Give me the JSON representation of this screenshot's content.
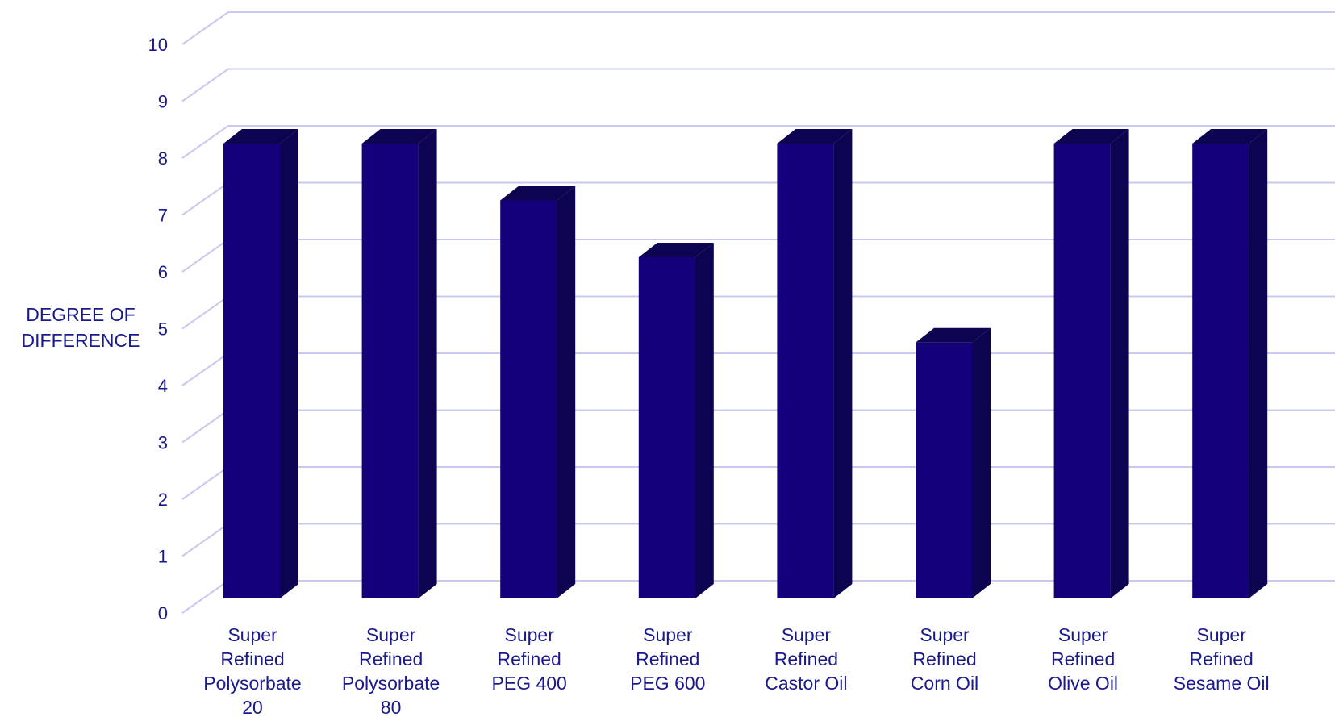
{
  "chart_data": {
    "type": "bar",
    "title": "",
    "ylabel": [
      "DEGREE OF",
      "DIFFERENCE"
    ],
    "xlabel": "",
    "ylim": [
      0,
      10
    ],
    "yticks": [
      "0",
      "1",
      "2",
      "3",
      "4",
      "5",
      "6",
      "7",
      "8",
      "9",
      "10"
    ],
    "grid": true,
    "categories": [
      [
        "Super",
        "Refined",
        "Polysorbate",
        "20"
      ],
      [
        "Super",
        "Refined",
        "Polysorbate",
        "80"
      ],
      [
        "Super",
        "Refined",
        "PEG 400"
      ],
      [
        "Super",
        "Refined",
        "PEG 600"
      ],
      [
        "Super",
        "Refined",
        "Castor Oil"
      ],
      [
        "Super",
        "Refined",
        "Corn Oil"
      ],
      [
        "Super",
        "Refined",
        "Olive Oil"
      ],
      [
        "Super",
        "Refined",
        "Sesame Oil"
      ]
    ],
    "values": [
      8,
      8,
      7,
      6,
      8,
      4.5,
      8,
      8
    ],
    "colors": {
      "bar_front": "#14007a",
      "bar_side": "#0c0450",
      "bar_top": "#0c0450",
      "grid": "#c8c8f0",
      "text": "#1a1a8c"
    }
  }
}
